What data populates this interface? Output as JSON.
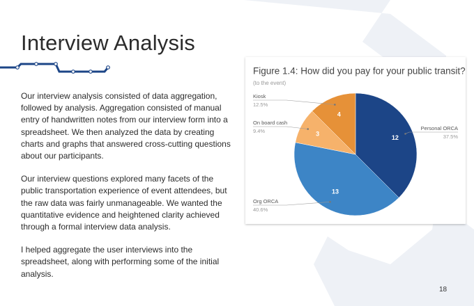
{
  "slide": {
    "title": "Interview Analysis",
    "paragraphs": [
      "Our interview analysis consisted of data aggregation, followed by analysis. Aggregation consisted of manual entry of handwritten notes from our interview form into a spreadsheet. We then analyzed the data by creating charts and graphs that answered cross-cutting questions about our participants.",
      "Our interview questions explored many facets of the public transportation experience of event attendees, but the raw data was fairly unmanageable. We wanted the quantitative evidence and heightened clarity achieved through a formal interview data analysis.",
      "I helped aggregate the user interviews into the spreadsheet, along with performing some of the initial analysis."
    ],
    "page_number": "18"
  },
  "chart_data": {
    "type": "pie",
    "title": "Figure 1.4: How did you pay for your public transit?",
    "subtitle": "(to the event)",
    "categories": [
      "Personal ORCA",
      "Org ORCA",
      "On board cash",
      "Kiosk"
    ],
    "values": [
      12,
      13,
      3,
      4
    ],
    "percent_labels": [
      "37.5%",
      "40.6%",
      "9.4%",
      "12.5%"
    ],
    "colors": [
      "#1c4587",
      "#3d85c6",
      "#f6b26b",
      "#e69138"
    ]
  }
}
